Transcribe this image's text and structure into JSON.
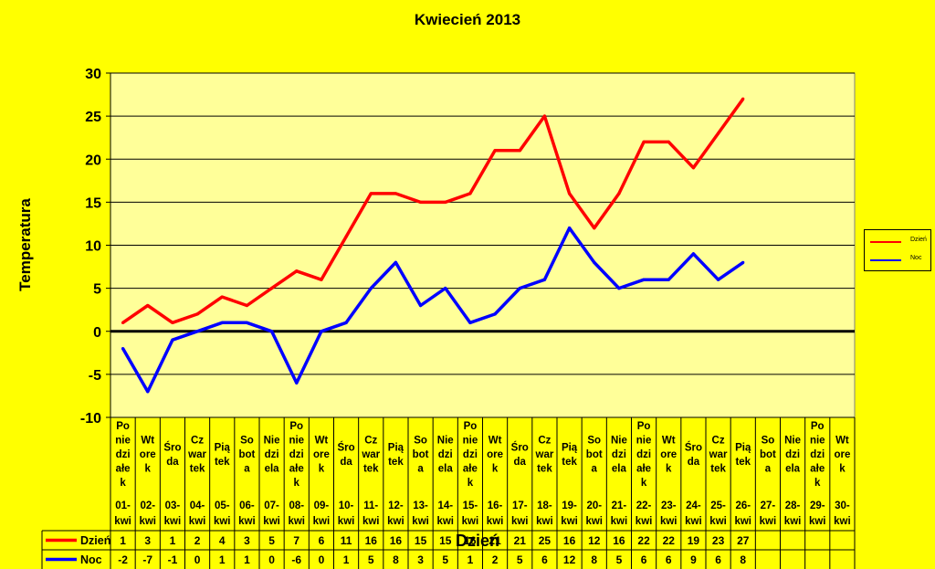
{
  "chart_data": {
    "type": "line",
    "title": "Kwiecień 2013",
    "xlabel": "Dzień",
    "ylabel": "Temperatura",
    "ylim": [
      -10,
      30
    ],
    "yticks": [
      30,
      25,
      20,
      15,
      10,
      5,
      0,
      -5,
      -10
    ],
    "categories": [
      {
        "day": "Po nie dzi ałe k",
        "date": "01- kwi"
      },
      {
        "day": "Wt ore k",
        "date": "02- kwi"
      },
      {
        "day": "Śro da",
        "date": "03- kwi"
      },
      {
        "day": "Cz war tek",
        "date": "04- kwi"
      },
      {
        "day": "Pią tek",
        "date": "05- kwi"
      },
      {
        "day": "So bot a",
        "date": "06- kwi"
      },
      {
        "day": "Nie dzi ela",
        "date": "07- kwi"
      },
      {
        "day": "Po nie dzi ałe k",
        "date": "08- kwi"
      },
      {
        "day": "Wt ore k",
        "date": "09- kwi"
      },
      {
        "day": "Śro da",
        "date": "10- kwi"
      },
      {
        "day": "Cz war tek",
        "date": "11- kwi"
      },
      {
        "day": "Pią tek",
        "date": "12- kwi"
      },
      {
        "day": "So bot a",
        "date": "13- kwi"
      },
      {
        "day": "Nie dzi ela",
        "date": "14- kwi"
      },
      {
        "day": "Po nie dzi ałe k",
        "date": "15- kwi"
      },
      {
        "day": "Wt ore k",
        "date": "16- kwi"
      },
      {
        "day": "Śro da",
        "date": "17- kwi"
      },
      {
        "day": "Cz war tek",
        "date": "18- kwi"
      },
      {
        "day": "Pią tek",
        "date": "19- kwi"
      },
      {
        "day": "So bot a",
        "date": "20- kwi"
      },
      {
        "day": "Nie dzi ela",
        "date": "21- kwi"
      },
      {
        "day": "Po nie dzi ałe k",
        "date": "22- kwi"
      },
      {
        "day": "Wt ore k",
        "date": "23- kwi"
      },
      {
        "day": "Śro da",
        "date": "24- kwi"
      },
      {
        "day": "Cz war tek",
        "date": "25- kwi"
      },
      {
        "day": "Pią tek",
        "date": "26- kwi"
      },
      {
        "day": "So bot a",
        "date": "27- kwi"
      },
      {
        "day": "Nie dzi ela",
        "date": "28- kwi"
      },
      {
        "day": "Po nie dzi ałe k",
        "date": "29- kwi"
      },
      {
        "day": "Wt ore k",
        "date": "30- kwi"
      }
    ],
    "series": [
      {
        "name": "Dzień",
        "color": "#FF0000",
        "values": [
          1,
          3,
          1,
          2,
          4,
          3,
          5,
          7,
          6,
          11,
          16,
          16,
          15,
          15,
          16,
          21,
          21,
          25,
          16,
          12,
          16,
          22,
          22,
          19,
          23,
          27,
          null,
          null,
          null,
          null
        ]
      },
      {
        "name": "Noc",
        "color": "#0000FF",
        "values": [
          -2,
          -7,
          -1,
          0,
          1,
          1,
          0,
          -6,
          0,
          1,
          5,
          8,
          3,
          5,
          1,
          2,
          5,
          6,
          12,
          8,
          5,
          6,
          6,
          9,
          6,
          8,
          null,
          null,
          null,
          null
        ]
      }
    ],
    "grid": true,
    "zero_line": true,
    "legend_position": "right",
    "plot_background": "#FFFF99",
    "page_background": "#FFFF00"
  }
}
